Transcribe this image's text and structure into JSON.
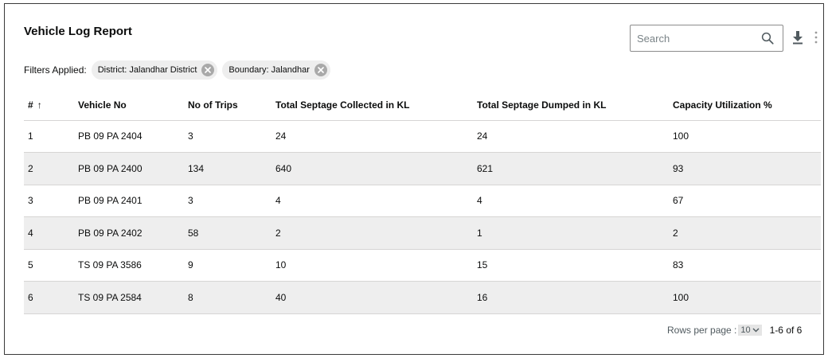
{
  "header": {
    "title": "Vehicle Log Report",
    "search_placeholder": "Search"
  },
  "filters": {
    "label": "Filters Applied:",
    "chips": [
      {
        "label": "District: Jalandhar District"
      },
      {
        "label": "Boundary: Jalandhar"
      }
    ]
  },
  "table": {
    "columns": [
      "#",
      "Vehicle No",
      "No of Trips",
      "Total Septage Collected in KL",
      "Total Septage Dumped in KL",
      "Capacity Utilization %"
    ],
    "sort_indicator": "↑",
    "rows": [
      [
        "1",
        "PB 09 PA 2404",
        "3",
        "24",
        "24",
        "100"
      ],
      [
        "2",
        "PB 09 PA 2400",
        "134",
        "640",
        "621",
        "93"
      ],
      [
        "3",
        "PB 09 PA 2401",
        "3",
        "4",
        "4",
        "67"
      ],
      [
        "4",
        "PB 09 PA 2402",
        "58",
        "2",
        "1",
        "2"
      ],
      [
        "5",
        "TS 09 PA 3586",
        "9",
        "10",
        "15",
        "83"
      ],
      [
        "6",
        "TS 09 PA 2584",
        "8",
        "40",
        "16",
        "100"
      ]
    ]
  },
  "pagination": {
    "rows_per_page_label": "Rows per page :",
    "rows_per_page_value": "10",
    "range": "1-6 of 6"
  }
}
